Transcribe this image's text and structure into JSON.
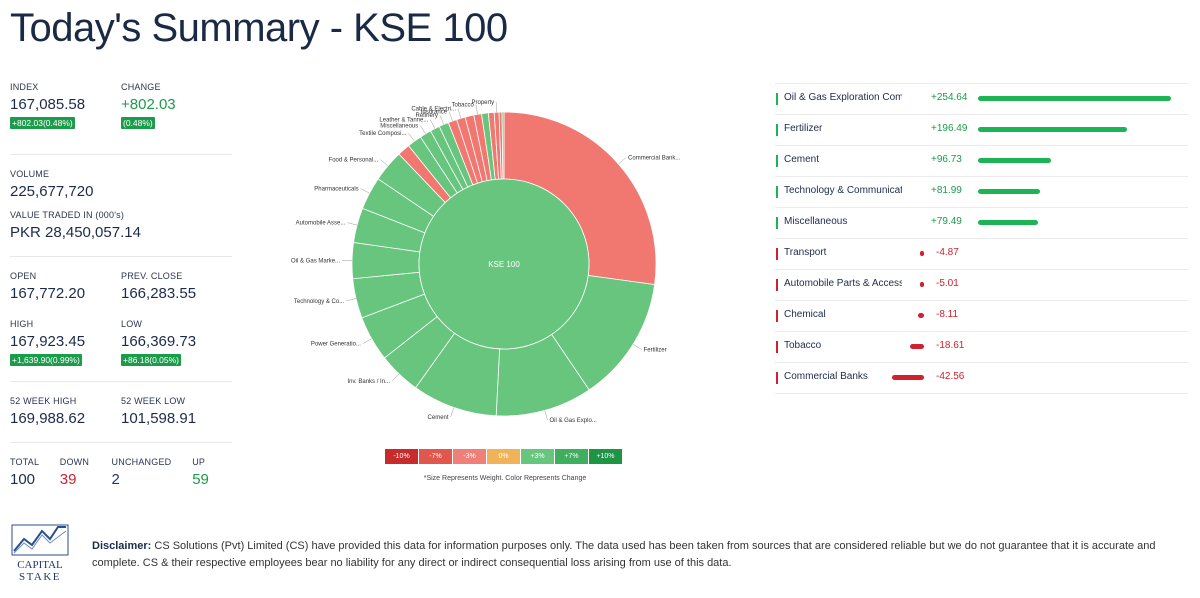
{
  "header": {
    "title": "Today's Summary - KSE 100"
  },
  "stats": {
    "index_label": "INDEX",
    "index_value": "167,085.58",
    "index_badge": "+802.03(0.48%)",
    "change_label": "CHANGE",
    "change_value": "+802.03",
    "change_badge": "(0.48%)",
    "volume_label": "VOLUME",
    "volume_value": "225,677,720",
    "value_traded_label": "VALUE TRADED IN (000's)",
    "value_traded_value": "PKR 28,450,057.14",
    "open_label": "OPEN",
    "open_value": "167,772.20",
    "prev_close_label": "PREV. CLOSE",
    "prev_close_value": "166,283.55",
    "high_label": "HIGH",
    "high_value": "167,923.45",
    "high_badge": "+1,639.90(0.99%)",
    "low_label": "LOW",
    "low_value": "166,369.73",
    "low_badge": "+86.18(0.05%)",
    "wk52_high_label": "52 WEEK HIGH",
    "wk52_high_value": "169,988.62",
    "wk52_low_label": "52 WEEK LOW",
    "wk52_low_value": "101,598.91",
    "total_label": "TOTAL",
    "total_value": "100",
    "down_label": "DOWN",
    "down_value": "39",
    "unchanged_label": "UNCHANGED",
    "unchanged_value": "2",
    "up_label": "UP",
    "up_value": "59"
  },
  "chart_data": {
    "type": "pie",
    "title": "KSE 100",
    "center_label": "KSE 100",
    "slices": [
      {
        "label": "Commercial Bank...",
        "weight": 26.4,
        "color": "#f07870"
      },
      {
        "label": "Fertilizer",
        "weight": 13.0,
        "color": "#67c57e"
      },
      {
        "label": "Oil & Gas Explo...",
        "weight": 10.0,
        "color": "#67c57e"
      },
      {
        "label": "Cement",
        "weight": 8.8,
        "color": "#67c57e"
      },
      {
        "label": "Inv. Banks / In...",
        "weight": 4.4,
        "color": "#67c57e"
      },
      {
        "label": "Power Generatio...",
        "weight": 4.7,
        "color": "#67c57e"
      },
      {
        "label": "Technology & Co...",
        "weight": 4.1,
        "color": "#67c57e"
      },
      {
        "label": "Oil & Gas Marke...",
        "weight": 3.7,
        "color": "#67c57e"
      },
      {
        "label": "Automobile Asse...",
        "weight": 3.6,
        "color": "#67c57e"
      },
      {
        "label": "Pharmaceuticals",
        "weight": 3.4,
        "color": "#67c57e"
      },
      {
        "label": "Food & Personal...",
        "weight": 3.3,
        "color": "#67c57e"
      },
      {
        "label": "",
        "weight": 1.3,
        "color": "#f07870"
      },
      {
        "label": "Textile Composi...",
        "weight": 1.5,
        "color": "#67c57e"
      },
      {
        "label": "Miscellaneous",
        "weight": 1.2,
        "color": "#67c57e"
      },
      {
        "label": "Leather & Tanne...",
        "weight": 1.0,
        "color": "#67c57e"
      },
      {
        "label": "Refinery",
        "weight": 1.0,
        "color": "#67c57e"
      },
      {
        "label": "Insurance",
        "weight": 0.9,
        "color": "#f07870"
      },
      {
        "label": "Cable & Electri...",
        "weight": 0.9,
        "color": "#f07870"
      },
      {
        "label": "",
        "weight": 0.9,
        "color": "#f07870"
      },
      {
        "label": "Tobacco",
        "weight": 0.8,
        "color": "#f07870"
      },
      {
        "label": "",
        "weight": 0.7,
        "color": "#67c57e"
      },
      {
        "label": "",
        "weight": 0.6,
        "color": "#f07870"
      },
      {
        "label": "Property",
        "weight": 0.5,
        "color": "#f07870"
      },
      {
        "label": "",
        "weight": 0.3,
        "color": "#f07870"
      },
      {
        "label": "",
        "weight": 0.2,
        "color": "#67c57e"
      }
    ]
  },
  "legend": {
    "items": [
      {
        "label": "-10%",
        "color": "#c82b2b"
      },
      {
        "label": "-7%",
        "color": "#e0574d"
      },
      {
        "label": "-3%",
        "color": "#ee8079"
      },
      {
        "label": "0%",
        "color": "#f0b35a"
      },
      {
        "label": "+3%",
        "color": "#67c57e"
      },
      {
        "label": "+7%",
        "color": "#3fae5f"
      },
      {
        "label": "+10%",
        "color": "#1e9445"
      }
    ],
    "note": "*Size Represents Weight. Color Represents Change"
  },
  "sectors": [
    {
      "name": "Oil & Gas Exploration Companies",
      "change": "+254.64",
      "value": 254.64
    },
    {
      "name": "Fertilizer",
      "change": "+196.49",
      "value": 196.49
    },
    {
      "name": "Cement",
      "change": "+96.73",
      "value": 96.73
    },
    {
      "name": "Technology & Communication",
      "change": "+81.99",
      "value": 81.99
    },
    {
      "name": "Miscellaneous",
      "change": "+79.49",
      "value": 79.49
    },
    {
      "name": "Transport",
      "change": "-4.87",
      "value": -4.87
    },
    {
      "name": "Automobile Parts & Accessories",
      "change": "-5.01",
      "value": -5.01
    },
    {
      "name": "Chemical",
      "change": "-8.11",
      "value": -8.11
    },
    {
      "name": "Tobacco",
      "change": "-18.61",
      "value": -18.61
    },
    {
      "name": "Commercial Banks",
      "change": "-42.56",
      "value": -42.56
    }
  ],
  "colors": {
    "positive": "#1cb455",
    "negative": "#d0212f"
  },
  "logo": {
    "line1": "CAPITAL",
    "line2": "STAKE"
  },
  "disclaimer": {
    "label": "Disclaimer:",
    "text": "CS Solutions (Pvt) Limited (CS) have provided this data for information purposes only. The data used has been taken from sources that are considered reliable but we do not guarantee that it is accurate and complete. CS & their respective employees bear no liability for any direct or indirect consequential loss arising from use of this data."
  }
}
